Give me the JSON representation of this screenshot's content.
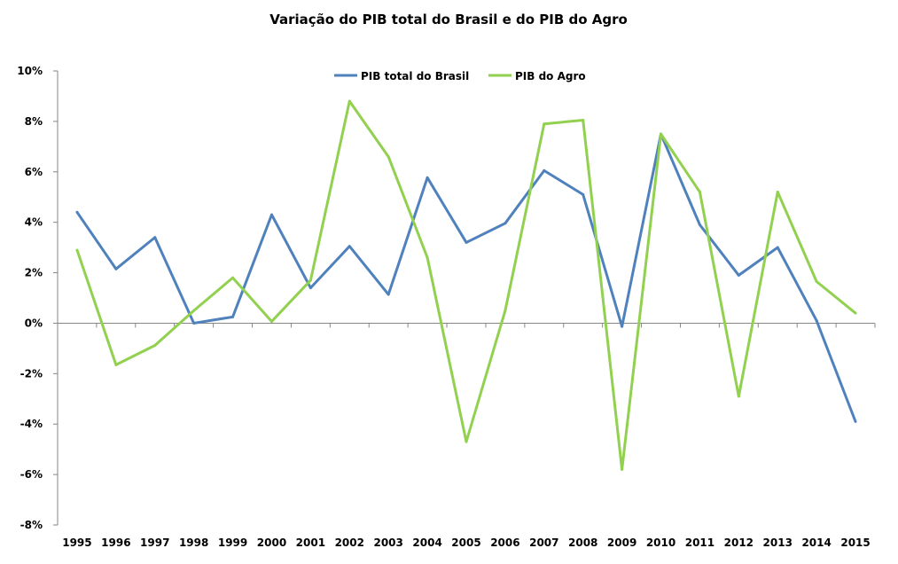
{
  "chart_data": {
    "type": "line",
    "title": "Variação do PIB total do Brasil e do PIB do Agro",
    "xlabel": "",
    "ylabel": "",
    "ylim": [
      -8,
      10
    ],
    "y_ticks": [
      10,
      8,
      6,
      4,
      2,
      0,
      -2,
      -4,
      -6,
      -8
    ],
    "y_tick_labels": [
      "10%",
      "8%",
      "6%",
      "4%",
      "2%",
      "0%",
      "-2%",
      "-4%",
      "-6%",
      "-8%"
    ],
    "grid": false,
    "legend_position": "top-center",
    "categories": [
      "1995",
      "1996",
      "1997",
      "1998",
      "1999",
      "2000",
      "2001",
      "2002",
      "2003",
      "2004",
      "2005",
      "2006",
      "2007",
      "2008",
      "2009",
      "2010",
      "2011",
      "2012",
      "2013",
      "2014",
      "2015"
    ],
    "series": [
      {
        "name": "PIB total do Brasil",
        "color": "#4F81BD",
        "values": [
          4.4,
          2.15,
          3.4,
          0.0,
          0.25,
          4.3,
          1.4,
          3.05,
          1.14,
          5.77,
          3.2,
          3.96,
          6.05,
          5.1,
          -0.13,
          7.5,
          3.9,
          1.9,
          3.0,
          0.1,
          -3.9
        ]
      },
      {
        "name": "PIB do Agro",
        "color": "#92D050",
        "values": [
          2.9,
          -1.65,
          -0.88,
          0.5,
          1.8,
          0.07,
          1.7,
          8.8,
          6.6,
          2.6,
          -4.7,
          0.5,
          7.9,
          8.05,
          -5.8,
          7.5,
          5.2,
          -2.9,
          5.2,
          1.65,
          0.4
        ]
      }
    ]
  }
}
